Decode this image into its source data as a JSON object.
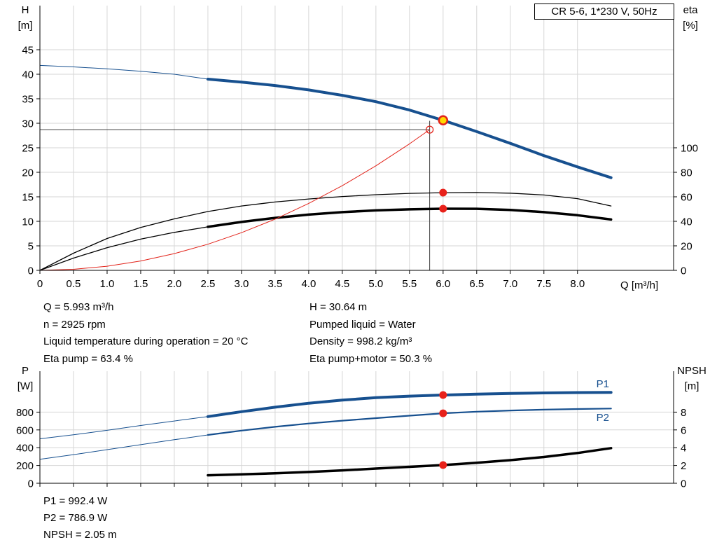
{
  "colors": {
    "blue": "#17508f",
    "red": "#e2231a",
    "marker_red": "#e8211a",
    "marker_yellow": "#ffd800",
    "black": "#000000",
    "grid": "#d6d6d6",
    "guide": "#404040",
    "axis": "#000000"
  },
  "title_box": {
    "label": "CR 5-6, 1*230 V, 50Hz"
  },
  "axis_labels": {
    "h_title": "H",
    "h_unit": "[m]",
    "eta_title": "eta",
    "eta_unit": "[%]",
    "q_title": "Q [m³/h]",
    "p_title": "P",
    "p_unit": "[W]",
    "npsh_title": "NPSH",
    "npsh_unit": "[m]"
  },
  "info_top": {
    "left": [
      "Q = 5.993 m³/h",
      "n = 2925 rpm",
      "Liquid temperature during operation = 20 °C",
      "Eta pump = 63.4 %"
    ],
    "right": [
      "H = 30.64 m",
      "Pumped liquid = Water",
      "Density = 998.2 kg/m³",
      "Eta pump+motor = 50.3 %"
    ]
  },
  "info_bottom": [
    "P1 = 992.4 W",
    "P2 = 786.9 W",
    "NPSH = 2.05 m"
  ],
  "chart_data": [
    {
      "id": "head-eta-chart",
      "type": "line",
      "title": "CR 5-6, 1*230 V, 50Hz",
      "x_axis": {
        "label": "Q [m³/h]",
        "range": [
          0,
          9.43
        ],
        "ticks": [
          0,
          0.5,
          1,
          1.5,
          2,
          2.5,
          3,
          3.5,
          4,
          4.5,
          5,
          5.5,
          6,
          6.5,
          7,
          7.5,
          8
        ],
        "tick_labels": [
          "0",
          "0.5",
          "1.0",
          "1.5",
          "2.0",
          "2.5",
          "3.0",
          "3.5",
          "4.0",
          "4.5",
          "5.0",
          "5.5",
          "6.0",
          "6.5",
          "7.0",
          "7.5",
          "8.0"
        ]
      },
      "y_left": {
        "label": "H [m]",
        "range": [
          0,
          54
        ],
        "ticks": [
          0,
          5,
          10,
          15,
          20,
          25,
          30,
          35,
          40,
          45
        ]
      },
      "y_right": {
        "label": "eta [%]",
        "range": [
          0,
          216
        ],
        "ticks": [
          0,
          20,
          40,
          60,
          80,
          100
        ]
      },
      "series": [
        {
          "name": "head-curve-inlet",
          "axis": "left",
          "color": "blue",
          "width": 1,
          "x": [
            0,
            0.5,
            1,
            1.5,
            2,
            2.5
          ],
          "y": [
            41.8,
            41.5,
            41.1,
            40.6,
            40.0,
            39.0
          ]
        },
        {
          "name": "head-curve",
          "axis": "left",
          "color": "blue",
          "width": 4,
          "x": [
            2.5,
            3,
            3.5,
            4,
            4.5,
            5,
            5.5,
            6,
            6.5,
            7,
            7.5,
            8,
            8.5
          ],
          "y": [
            39.0,
            38.4,
            37.7,
            36.8,
            35.7,
            34.4,
            32.7,
            30.6,
            28.3,
            25.9,
            23.4,
            21.1,
            18.9
          ]
        },
        {
          "name": "eta-pump-curve",
          "axis": "right",
          "color": "black",
          "width": 1.3,
          "x": [
            0,
            0.5,
            1,
            1.5,
            2,
            2.5,
            3,
            3.5,
            4,
            4.5,
            5,
            5.5,
            6,
            6.5,
            7,
            7.5,
            8,
            8.5
          ],
          "y": [
            0,
            14,
            26,
            35,
            42,
            48,
            52.5,
            55.8,
            58.2,
            60.2,
            61.7,
            62.8,
            63.4,
            63.5,
            63,
            61.5,
            58.5,
            52.5
          ]
        },
        {
          "name": "eta-pump-motor-curve-inlet",
          "axis": "right",
          "color": "black",
          "width": 1.3,
          "x": [
            0,
            0.5,
            1,
            1.5,
            2,
            2.5
          ],
          "y": [
            0,
            10,
            18.5,
            25.5,
            31,
            35.5
          ]
        },
        {
          "name": "eta-pump-motor-curve",
          "axis": "right",
          "color": "black",
          "width": 3.5,
          "x": [
            2.5,
            3,
            3.5,
            4,
            4.5,
            5,
            5.5,
            6,
            6.5,
            7,
            7.5,
            8,
            8.5
          ],
          "y": [
            35.5,
            39.5,
            42.8,
            45.5,
            47.5,
            48.9,
            49.8,
            50.3,
            50.2,
            49.3,
            47.5,
            45,
            41.5
          ]
        },
        {
          "name": "system-curve",
          "axis": "left",
          "color": "red",
          "width": 1,
          "x": [
            0,
            0.5,
            1,
            1.5,
            2,
            2.5,
            3,
            3.5,
            4,
            4.5,
            5,
            5.5,
            5.8
          ],
          "y": [
            0,
            0.21,
            0.85,
            1.92,
            3.41,
            5.33,
            7.68,
            10.45,
            13.65,
            17.27,
            21.33,
            25.8,
            28.7
          ]
        }
      ],
      "guides": [
        {
          "name": "duty-h-line",
          "orient": "h",
          "axis": "left",
          "at": 28.7,
          "from": 0,
          "to": 5.8
        },
        {
          "name": "duty-v-line",
          "orient": "v",
          "axis": "left",
          "at": 5.8,
          "from": 0,
          "to": 30.5
        }
      ],
      "markers": [
        {
          "name": "requested-duty-marker",
          "type": "open",
          "axis": "left",
          "x": 5.8,
          "y": 28.7
        },
        {
          "name": "duty-point-marker",
          "type": "duty",
          "axis": "left",
          "x": 6.0,
          "y": 30.6
        },
        {
          "name": "eta-pump-point",
          "type": "dot",
          "axis": "right",
          "x": 6.0,
          "y": 63.4
        },
        {
          "name": "eta-pump-motor-point",
          "type": "dot",
          "axis": "right",
          "x": 6.0,
          "y": 50.3
        }
      ],
      "labels": []
    },
    {
      "id": "power-npsh-chart",
      "type": "line",
      "title": "",
      "x_axis": {
        "label": "Q [m³/h]",
        "range": [
          0,
          9.43
        ],
        "ticks": [
          0,
          0.5,
          1,
          1.5,
          2,
          2.5,
          3,
          3.5,
          4,
          4.5,
          5,
          5.5,
          6,
          6.5,
          7,
          7.5,
          8
        ],
        "tick_labels": null
      },
      "y_left": {
        "label": "P [W]",
        "range": [
          0,
          1260
        ],
        "ticks": [
          0,
          200,
          400,
          600,
          800
        ]
      },
      "y_right": {
        "label": "NPSH [m]",
        "range": [
          0,
          12.6
        ],
        "ticks": [
          0,
          2,
          4,
          6,
          8
        ]
      },
      "series": [
        {
          "name": "p1-curve-inlet",
          "axis": "left",
          "color": "blue",
          "width": 1,
          "x": [
            0,
            0.5,
            1,
            1.5,
            2,
            2.5
          ],
          "y": [
            500,
            545,
            595,
            650,
            700,
            750
          ]
        },
        {
          "name": "p1-curve",
          "axis": "left",
          "color": "blue",
          "width": 4,
          "x": [
            2.5,
            3,
            3.5,
            4,
            4.5,
            5,
            5.5,
            6,
            6.5,
            7,
            7.5,
            8,
            8.5
          ],
          "y": [
            750,
            805,
            855,
            900,
            935,
            962,
            980,
            992,
            1002,
            1010,
            1016,
            1020,
            1022
          ]
        },
        {
          "name": "p2-curve-inlet",
          "axis": "left",
          "color": "blue",
          "width": 1,
          "x": [
            0,
            0.5,
            1,
            1.5,
            2,
            2.5
          ],
          "y": [
            270,
            322,
            378,
            434,
            490,
            543
          ]
        },
        {
          "name": "p2-curve",
          "axis": "left",
          "color": "blue",
          "width": 2.2,
          "x": [
            2.5,
            3,
            3.5,
            4,
            4.5,
            5,
            5.5,
            6,
            6.5,
            7,
            7.5,
            8,
            8.5
          ],
          "y": [
            543,
            592,
            635,
            672,
            704,
            732,
            760,
            787,
            805,
            818,
            828,
            835,
            840
          ]
        },
        {
          "name": "npsh-curve",
          "axis": "right",
          "color": "black",
          "width": 3.5,
          "x": [
            2.5,
            3,
            3.5,
            4,
            4.5,
            5,
            5.5,
            6,
            6.5,
            7,
            7.5,
            8,
            8.5
          ],
          "y": [
            0.9,
            1.0,
            1.12,
            1.27,
            1.45,
            1.65,
            1.85,
            2.05,
            2.3,
            2.6,
            2.95,
            3.4,
            3.95
          ]
        }
      ],
      "guides": [],
      "markers": [
        {
          "name": "p1-point",
          "type": "dot",
          "axis": "left",
          "x": 6.0,
          "y": 992.4
        },
        {
          "name": "p2-point",
          "type": "dot",
          "axis": "left",
          "x": 6.0,
          "y": 786.9
        },
        {
          "name": "npsh-point",
          "type": "dot",
          "axis": "right",
          "x": 6.0,
          "y": 2.05
        }
      ],
      "labels": [
        {
          "name": "p1-label",
          "text": "P1",
          "axis": "left",
          "x": 8.28,
          "y": 1080
        },
        {
          "name": "p2-label",
          "text": "P2",
          "axis": "left",
          "x": 8.28,
          "y": 700
        }
      ]
    }
  ]
}
